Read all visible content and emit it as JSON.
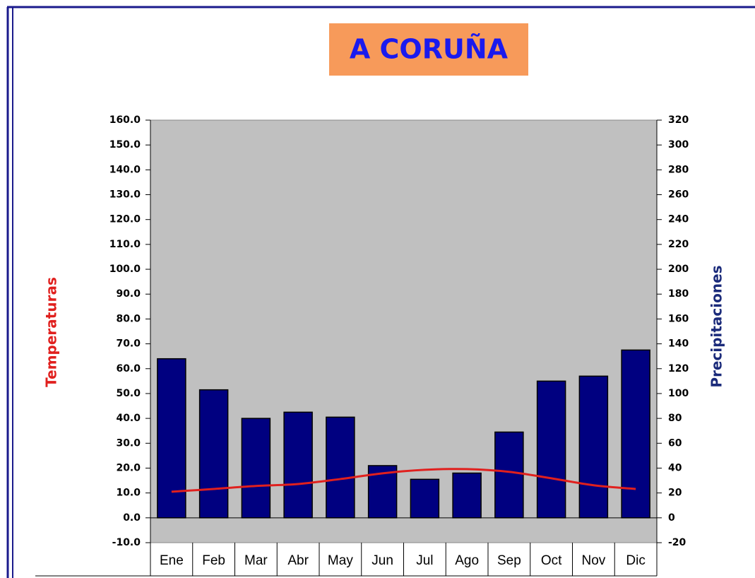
{
  "chart_data": {
    "type": "bar",
    "title": "A CORUÑA",
    "y_label": "Temperaturas",
    "y2_label": "Precipitaciones",
    "categories": [
      "Ene",
      "Feb",
      "Mar",
      "Abr",
      "May",
      "Jun",
      "Jul",
      "Ago",
      "Sep",
      "Oct",
      "Nov",
      "Dic"
    ],
    "series": [
      {
        "name": "Precipitaciones",
        "type": "bar",
        "axis": "y2",
        "color": "#000080",
        "values": [
          128,
          103,
          80,
          85,
          81,
          42,
          31,
          36,
          69,
          110,
          114,
          135
        ]
      },
      {
        "name": "Temperaturas",
        "type": "line",
        "axis": "y",
        "color": "#e0201e",
        "values": [
          10.5,
          11.6,
          12.8,
          13.6,
          15.6,
          17.9,
          19.3,
          19.6,
          18.5,
          15.9,
          13.1,
          11.6
        ]
      }
    ],
    "ylim": [
      -10,
      160
    ],
    "yticks": [
      {
        "value": 160,
        "label": "160.0"
      },
      {
        "value": 150,
        "label": "150.0"
      },
      {
        "value": 140,
        "label": "140.0"
      },
      {
        "value": 130,
        "label": "130.0"
      },
      {
        "value": 120,
        "label": "120.0"
      },
      {
        "value": 110,
        "label": "110.0"
      },
      {
        "value": 100,
        "label": "100.0"
      },
      {
        "value": 90,
        "label": "90.0"
      },
      {
        "value": 80,
        "label": "80.0"
      },
      {
        "value": 70,
        "label": "70.0"
      },
      {
        "value": 60,
        "label": "60.0"
      },
      {
        "value": 50,
        "label": "50.0"
      },
      {
        "value": 40,
        "label": "40.0"
      },
      {
        "value": 30,
        "label": "30.0"
      },
      {
        "value": 20,
        "label": "20.0"
      },
      {
        "value": 10,
        "label": "10.0"
      },
      {
        "value": 0,
        "label": "0.0"
      },
      {
        "value": -10,
        "label": "-10.0"
      }
    ],
    "y2lim": [
      -20,
      320
    ],
    "y2ticks": [
      320,
      300,
      280,
      260,
      240,
      220,
      200,
      180,
      160,
      140,
      120,
      100,
      80,
      60,
      40,
      20,
      0,
      -20
    ],
    "plot_background": "#c0c0c0"
  }
}
